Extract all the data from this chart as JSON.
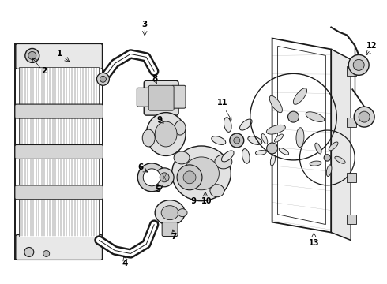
{
  "background_color": "#ffffff",
  "line_color": "#1a1a1a",
  "label_fontsize": 7.5,
  "fig_w": 4.9,
  "fig_h": 3.6,
  "dpi": 100
}
